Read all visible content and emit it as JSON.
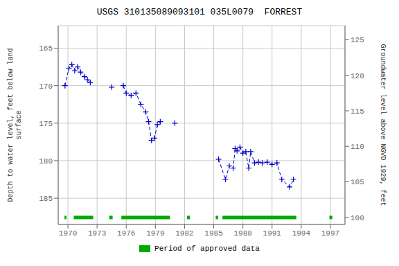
{
  "chart_data": {
    "type": "line",
    "title": "USGS 310135089093101 035L0079  FORREST",
    "ylabel": "Depth to water level, feet below land\nsurface",
    "y2label": "Groundwater level above NGVD 1929, feet",
    "xlim": [
      1969.0,
      1998.5
    ],
    "xticks": [
      1970,
      1973,
      1976,
      1979,
      1982,
      1985,
      1988,
      1991,
      1994,
      1997
    ],
    "ylim": [
      188.5,
      162.0
    ],
    "yticks": [
      165,
      170,
      175,
      180,
      185
    ],
    "y2lim": [
      99.0,
      127.0
    ],
    "y2ticks": [
      100,
      105,
      110,
      115,
      120,
      125
    ],
    "grid": true,
    "legend": "bottom",
    "series": [
      {
        "color": "#0000cc",
        "line_style": "dashed",
        "marker": "plus",
        "x": [
          1969.7,
          1970.1,
          1970.4,
          1970.7,
          1971.0,
          1971.3,
          1971.7,
          1972.0,
          1972.3
        ],
        "values": [
          170.0,
          167.7,
          167.2,
          168.0,
          167.5,
          168.2,
          168.8,
          169.2,
          169.6
        ]
      },
      {
        "color": "#0000cc",
        "line_style": "dashed",
        "marker": "plus",
        "x": [
          1974.5
        ],
        "values": [
          170.2
        ]
      },
      {
        "color": "#0000cc",
        "line_style": "dashed",
        "marker": "plus",
        "x": [
          1975.7,
          1976.0,
          1976.5,
          1977.0,
          1977.5,
          1978.0,
          1978.3,
          1978.6,
          1978.9,
          1979.2,
          1979.5
        ],
        "values": [
          170.0,
          171.0,
          171.3,
          171.0,
          172.5,
          173.5,
          174.8,
          177.3,
          177.0,
          175.2,
          174.8
        ]
      },
      {
        "color": "#0000cc",
        "line_style": "dashed",
        "marker": "plus",
        "x": [
          1981.0
        ],
        "values": [
          175.0
        ]
      },
      {
        "color": "#0000cc",
        "line_style": "dashed",
        "marker": "plus",
        "x": [
          1985.5,
          1986.2,
          1986.6,
          1987.0,
          1987.2,
          1987.4,
          1987.7,
          1988.0,
          1988.3,
          1988.6,
          1988.8,
          1989.2,
          1989.6,
          1990.0,
          1990.5,
          1991.0,
          1991.5,
          1992.0,
          1992.8,
          1993.2
        ],
        "values": [
          179.8,
          182.5,
          180.7,
          181.0,
          178.4,
          178.7,
          178.2,
          179.0,
          178.8,
          181.0,
          178.8,
          180.3,
          180.2,
          180.3,
          180.2,
          180.5,
          180.3,
          182.5,
          183.5,
          182.5
        ]
      },
      {
        "name": "Period of approved data",
        "type": "range",
        "color": "#00aa00",
        "ranges": [
          [
            1969.65,
            1969.85
          ],
          [
            1970.6,
            1972.6
          ],
          [
            1974.25,
            1974.6
          ],
          [
            1975.5,
            1980.5
          ],
          [
            1982.25,
            1982.55
          ],
          [
            1985.2,
            1985.45
          ],
          [
            1985.9,
            1993.5
          ],
          [
            1996.9,
            1997.2
          ]
        ]
      }
    ]
  }
}
